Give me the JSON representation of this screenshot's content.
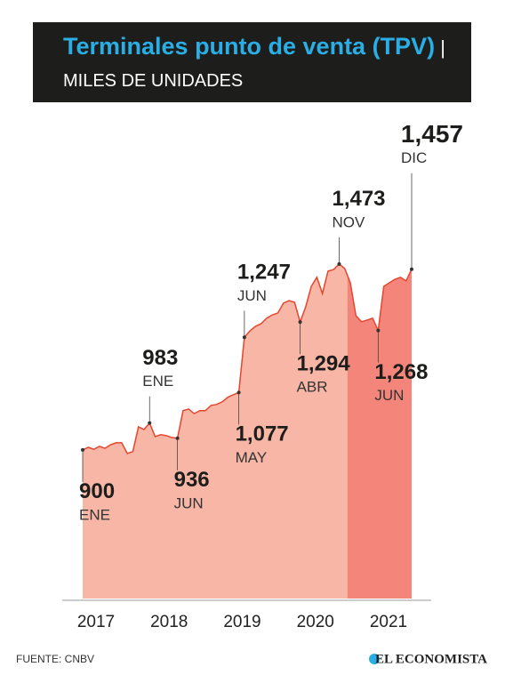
{
  "chart_data": {
    "type": "area",
    "title": "Terminales punto de venta (TPV)",
    "subtitle": "MILES DE UNIDADES",
    "source": "FUENTE: CNBV",
    "brand": "EL ECONOMISTA",
    "year_labels": [
      "2017",
      "2018",
      "2019",
      "2020",
      "2021"
    ],
    "values": [
      900,
      908,
      902,
      911,
      905,
      916,
      922,
      922,
      889,
      895,
      971,
      963,
      983,
      941,
      947,
      944,
      938,
      936,
      1021,
      1026,
      1012,
      1021,
      1021,
      1037,
      1040,
      1048,
      1062,
      1070,
      1077,
      1247,
      1267,
      1281,
      1289,
      1306,
      1316,
      1322,
      1352,
      1360,
      1355,
      1294,
      1341,
      1404,
      1432,
      1382,
      1451,
      1456,
      1473,
      1459,
      1415,
      1314,
      1295,
      1300,
      1306,
      1268,
      1404,
      1415,
      1426,
      1432,
      1421,
      1457
    ],
    "value_labels": [
      "900",
      null,
      null,
      null,
      null,
      null,
      null,
      null,
      null,
      null,
      null,
      null,
      "983",
      null,
      null,
      null,
      null,
      "936",
      null,
      null,
      null,
      null,
      null,
      null,
      null,
      null,
      null,
      null,
      "1,077",
      "1,247",
      null,
      null,
      null,
      null,
      null,
      null,
      null,
      null,
      null,
      "1,294",
      null,
      null,
      null,
      null,
      null,
      null,
      "1,473",
      null,
      null,
      null,
      null,
      null,
      null,
      "1,268",
      null,
      null,
      null,
      null,
      null,
      "1,457"
    ],
    "month_labels": [
      "ENE",
      null,
      null,
      null,
      null,
      null,
      null,
      null,
      null,
      null,
      null,
      null,
      "ENE",
      null,
      null,
      null,
      null,
      "JUN",
      null,
      null,
      null,
      null,
      null,
      null,
      null,
      null,
      null,
      null,
      "MAY",
      "JUN",
      null,
      null,
      null,
      null,
      null,
      null,
      null,
      null,
      null,
      "ABR",
      null,
      null,
      null,
      null,
      null,
      null,
      "NOV",
      null,
      null,
      null,
      null,
      null,
      null,
      "JUN",
      null,
      null,
      null,
      null,
      null,
      "DIC"
    ],
    "ylim": [
      442,
      1500
    ],
    "color": "#f7b6a6",
    "highlight_color": "#f3857a",
    "line_color": "#e6462e"
  }
}
